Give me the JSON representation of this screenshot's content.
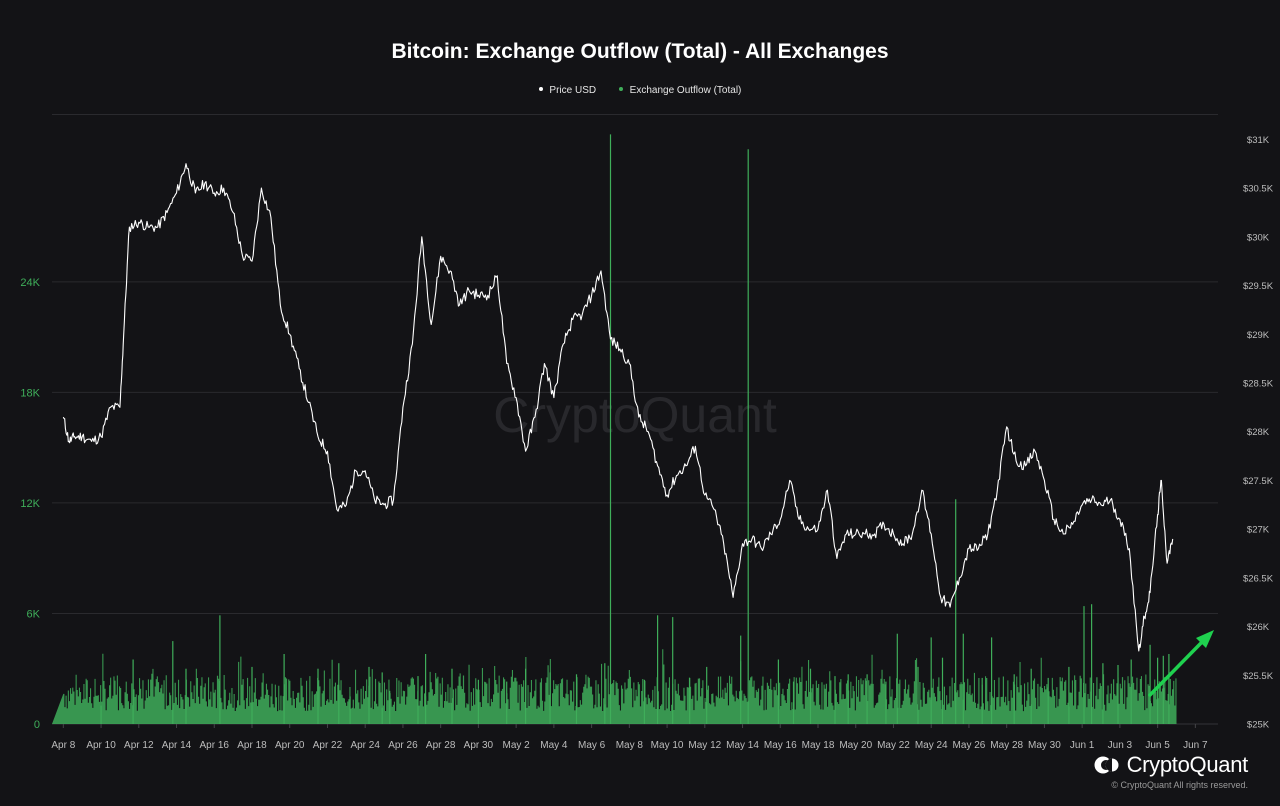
{
  "header": {
    "title": "Bitcoin: Exchange Outflow (Total) - All Exchanges"
  },
  "legend": [
    {
      "label": "Price USD",
      "color": "#ffffff"
    },
    {
      "label": "Exchange Outflow (Total)",
      "color": "#3fae5a"
    }
  ],
  "footer": {
    "brand": "CryptoQuant",
    "copyright": "© CryptoQuant All rights reserved.",
    "watermark": "CryptoQuant"
  },
  "colors": {
    "background": "#131316",
    "grid": "#2a2a2e",
    "outflow": "#3fae5a",
    "price": "#ffffff",
    "arrow": "#1fd14f",
    "left_axis_text": "#3fae5a",
    "right_axis_text": "#bdbdbd"
  },
  "chart_data": {
    "type": "bar+line",
    "title": "Bitcoin: Exchange Outflow (Total) - All Exchanges",
    "legend_position": "top-center",
    "grid": true,
    "x_ticks": [
      "Apr 8",
      "Apr 10",
      "Apr 12",
      "Apr 14",
      "Apr 16",
      "Apr 18",
      "Apr 20",
      "Apr 22",
      "Apr 24",
      "Apr 26",
      "Apr 28",
      "Apr 30",
      "May 2",
      "May 4",
      "May 6",
      "May 8",
      "May 10",
      "May 12",
      "May 14",
      "May 16",
      "May 18",
      "May 20",
      "May 22",
      "May 24",
      "May 26",
      "May 28",
      "May 30",
      "Jun 1",
      "Jun 3",
      "Jun 5",
      "Jun 7"
    ],
    "x_range_days": [
      -0.6,
      61.2
    ],
    "left_axis": {
      "ticks": [
        "0",
        "6K",
        "12K",
        "18K",
        "24K"
      ],
      "range": [
        0,
        33000
      ]
    },
    "right_axis": {
      "ticks": [
        "$25K",
        "$25.5K",
        "$26K",
        "$26.5K",
        "$27K",
        "$27.5K",
        "$28K",
        "$28.5K",
        "$29K",
        "$29.5K",
        "$30K",
        "$30.5K",
        "$31K"
      ],
      "range": [
        25000,
        31240
      ]
    },
    "series": [
      {
        "name": "Price USD",
        "type": "line",
        "axis": "right",
        "points": [
          [
            0,
            28150
          ],
          [
            0.3,
            27900
          ],
          [
            0.6,
            27950
          ],
          [
            1,
            27950
          ],
          [
            1.5,
            27900
          ],
          [
            2,
            27950
          ],
          [
            2.5,
            28250
          ],
          [
            3,
            28250
          ],
          [
            3.2,
            29000
          ],
          [
            3.5,
            30100
          ],
          [
            4,
            30150
          ],
          [
            4.5,
            30100
          ],
          [
            5,
            30100
          ],
          [
            5.5,
            30250
          ],
          [
            6,
            30450
          ],
          [
            6.5,
            30750
          ],
          [
            7,
            30450
          ],
          [
            7.5,
            30550
          ],
          [
            8,
            30450
          ],
          [
            8.5,
            30500
          ],
          [
            9,
            30250
          ],
          [
            9.5,
            29800
          ],
          [
            10,
            29750
          ],
          [
            10.5,
            30500
          ],
          [
            11,
            30200
          ],
          [
            11.5,
            29300
          ],
          [
            12,
            29000
          ],
          [
            12.5,
            28650
          ],
          [
            13,
            28300
          ],
          [
            13.5,
            27950
          ],
          [
            14,
            27800
          ],
          [
            14.5,
            27200
          ],
          [
            15,
            27250
          ],
          [
            15.5,
            27600
          ],
          [
            16,
            27600
          ],
          [
            16.5,
            27300
          ],
          [
            17,
            27250
          ],
          [
            17.5,
            27300
          ],
          [
            18,
            28250
          ],
          [
            18.5,
            28900
          ],
          [
            19,
            30000
          ],
          [
            19.5,
            29100
          ],
          [
            20,
            29800
          ],
          [
            20.5,
            29650
          ],
          [
            21,
            29300
          ],
          [
            21.5,
            29450
          ],
          [
            22,
            29400
          ],
          [
            22.5,
            29400
          ],
          [
            23,
            29600
          ],
          [
            23.5,
            28700
          ],
          [
            24,
            28350
          ],
          [
            24.5,
            27800
          ],
          [
            25,
            28150
          ],
          [
            25.5,
            28700
          ],
          [
            26,
            28350
          ],
          [
            26.5,
            28900
          ],
          [
            27,
            29150
          ],
          [
            27.5,
            29200
          ],
          [
            28,
            29400
          ],
          [
            28.5,
            29650
          ],
          [
            29,
            28950
          ],
          [
            29.5,
            28850
          ],
          [
            30,
            28700
          ],
          [
            30.5,
            28150
          ],
          [
            31,
            28000
          ],
          [
            31.5,
            27650
          ],
          [
            32,
            27350
          ],
          [
            32.5,
            27550
          ],
          [
            33,
            27650
          ],
          [
            33.5,
            27850
          ],
          [
            34,
            27350
          ],
          [
            34.5,
            27200
          ],
          [
            35,
            26850
          ],
          [
            35.5,
            26300
          ],
          [
            36,
            26850
          ],
          [
            36.5,
            26900
          ],
          [
            37,
            26800
          ],
          [
            37.5,
            26950
          ],
          [
            38,
            27100
          ],
          [
            38.5,
            27500
          ],
          [
            39,
            27100
          ],
          [
            39.5,
            27000
          ],
          [
            40,
            27000
          ],
          [
            40.5,
            27400
          ],
          [
            41,
            26700
          ],
          [
            41.5,
            26950
          ],
          [
            42,
            26950
          ],
          [
            42.5,
            26950
          ],
          [
            43,
            26950
          ],
          [
            43.5,
            27050
          ],
          [
            44,
            26950
          ],
          [
            44.5,
            26850
          ],
          [
            45,
            26950
          ],
          [
            45.5,
            27400
          ],
          [
            46,
            26950
          ],
          [
            46.5,
            26300
          ],
          [
            47,
            26200
          ],
          [
            47.5,
            26500
          ],
          [
            48,
            26800
          ],
          [
            48.5,
            26800
          ],
          [
            49,
            26950
          ],
          [
            49.5,
            27400
          ],
          [
            50,
            28050
          ],
          [
            50.5,
            27700
          ],
          [
            51,
            27650
          ],
          [
            51.5,
            27800
          ],
          [
            52,
            27500
          ],
          [
            52.5,
            27100
          ],
          [
            53,
            26950
          ],
          [
            53.5,
            27050
          ],
          [
            54,
            27250
          ],
          [
            54.5,
            27300
          ],
          [
            55,
            27250
          ],
          [
            55.5,
            27300
          ],
          [
            56,
            27100
          ],
          [
            56.5,
            26800
          ],
          [
            57,
            25750
          ],
          [
            57.3,
            26100
          ],
          [
            57.6,
            26350
          ],
          [
            58,
            27150
          ],
          [
            58.2,
            27500
          ],
          [
            58.5,
            26650
          ],
          [
            58.8,
            26900
          ]
        ]
      },
      {
        "name": "Exchange Outflow (Total)",
        "type": "bar",
        "axis": "left",
        "baseline_range": [
          700,
          2600
        ],
        "spikes": [
          [
            2,
            1000
          ],
          [
            3.7,
            3500
          ],
          [
            5.8,
            4500
          ],
          [
            6.5,
            3000
          ],
          [
            8.3,
            5900
          ],
          [
            10,
            3100
          ],
          [
            11.7,
            3800
          ],
          [
            13.5,
            3000
          ],
          [
            14.6,
            3300
          ],
          [
            15.2,
            1500
          ],
          [
            16.2,
            3100
          ],
          [
            16.9,
            2800
          ],
          [
            17.3,
            1800
          ],
          [
            18.8,
            2600
          ],
          [
            19.2,
            3800
          ],
          [
            20.6,
            3000
          ],
          [
            22,
            2400
          ],
          [
            23.5,
            2300
          ],
          [
            24.5,
            3000
          ],
          [
            25.8,
            2800
          ],
          [
            27.2,
            2700
          ],
          [
            28.7,
            3300
          ],
          [
            29,
            32000
          ],
          [
            30.8,
            2400
          ],
          [
            31.5,
            5900
          ],
          [
            32.3,
            5800
          ],
          [
            33.2,
            2500
          ],
          [
            34.1,
            3100
          ],
          [
            35.9,
            4800
          ],
          [
            36.3,
            31200
          ],
          [
            37.9,
            3500
          ],
          [
            38.7,
            2300
          ],
          [
            39.6,
            3000
          ],
          [
            40.9,
            2600
          ],
          [
            41.6,
            2700
          ],
          [
            42.6,
            2700
          ],
          [
            43.6,
            2300
          ],
          [
            44.2,
            4900
          ],
          [
            45.3,
            3100
          ],
          [
            46,
            4700
          ],
          [
            46.6,
            3600
          ],
          [
            47.3,
            12200
          ],
          [
            47.7,
            4900
          ],
          [
            48.7,
            2500
          ],
          [
            49.2,
            4700
          ],
          [
            50.4,
            2700
          ],
          [
            51.3,
            3000
          ],
          [
            52.2,
            2500
          ],
          [
            53.3,
            3100
          ],
          [
            54.1,
            6400
          ],
          [
            54.5,
            6500
          ],
          [
            55.1,
            3300
          ],
          [
            55.9,
            3200
          ],
          [
            56.6,
            3500
          ],
          [
            57.6,
            4300
          ],
          [
            58,
            3600
          ],
          [
            58.3,
            3700
          ],
          [
            58.6,
            3800
          ]
        ]
      }
    ]
  }
}
